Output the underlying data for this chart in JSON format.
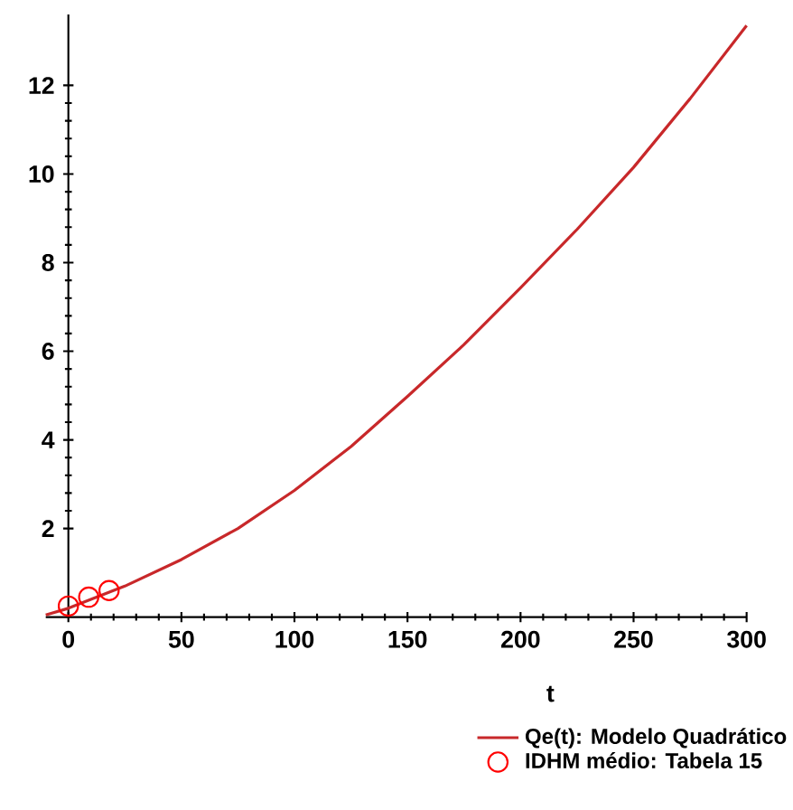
{
  "chart_data": {
    "type": "line",
    "xlabel": "t",
    "legend": "bottom right",
    "xlim": [
      -10,
      300
    ],
    "ylim": [
      0,
      13.6
    ],
    "xticks": [
      0,
      50,
      100,
      150,
      200,
      250,
      300
    ],
    "yticks": [
      2,
      4,
      6,
      8,
      10,
      12
    ],
    "grid": false,
    "series": [
      {
        "name": "Qe(t): Modelo Quadrático",
        "color": "#c8282a",
        "marker": "none",
        "line_style": "solid",
        "x": [
          -10,
          0,
          25,
          50,
          75,
          100,
          125,
          150,
          175,
          200,
          225,
          250,
          275,
          300
        ],
        "values": [
          0.05,
          0.2,
          0.7,
          1.3,
          2.0,
          2.86,
          3.85,
          4.98,
          6.15,
          7.43,
          8.75,
          10.15,
          11.7,
          13.35
        ]
      },
      {
        "name": "IDHM médio: Tabela 15",
        "color": "#ff0000",
        "type": "scatter",
        "marker": "circle",
        "x": [
          0,
          9,
          18
        ],
        "values": [
          0.25,
          0.45,
          0.6
        ]
      }
    ]
  }
}
